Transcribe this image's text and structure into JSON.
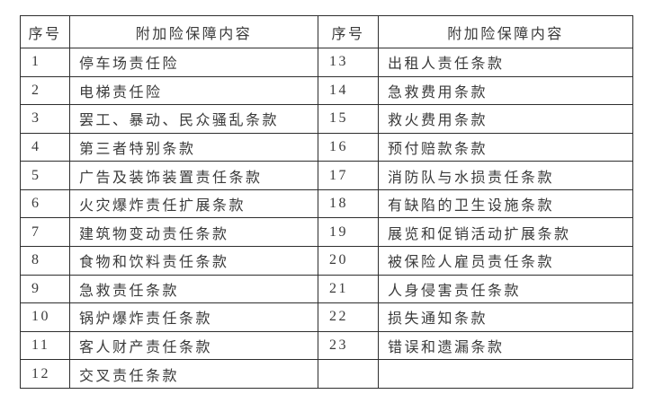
{
  "table": {
    "header": {
      "col_no": "序号",
      "col_content": "附加险保障内容"
    },
    "left_rows": [
      {
        "no": "1",
        "content": "停车场责任险"
      },
      {
        "no": "2",
        "content": "电梯责任险"
      },
      {
        "no": "3",
        "content": "罢工、暴动、民众骚乱条款"
      },
      {
        "no": "4",
        "content": "第三者特别条款"
      },
      {
        "no": "5",
        "content": "广告及装饰装置责任条款"
      },
      {
        "no": "6",
        "content": "火灾爆炸责任扩展条款"
      },
      {
        "no": "7",
        "content": "建筑物变动责任条款"
      },
      {
        "no": "8",
        "content": "食物和饮料责任条款"
      },
      {
        "no": "9",
        "content": "急救责任条款"
      },
      {
        "no": "10",
        "content": "锅炉爆炸责任条款"
      },
      {
        "no": "11",
        "content": "客人财产责任条款"
      },
      {
        "no": "12",
        "content": "交叉责任条款"
      }
    ],
    "right_rows": [
      {
        "no": "13",
        "content": "出租人责任条款"
      },
      {
        "no": "14",
        "content": "急救费用条款"
      },
      {
        "no": "15",
        "content": "救火费用条款"
      },
      {
        "no": "16",
        "content": "预付赔款条款"
      },
      {
        "no": "17",
        "content": "消防队与水损责任条款"
      },
      {
        "no": "18",
        "content": "有缺陷的卫生设施条款"
      },
      {
        "no": "19",
        "content": "展览和促销活动扩展条款"
      },
      {
        "no": "20",
        "content": "被保险人雇员责任条款"
      },
      {
        "no": "21",
        "content": "人身侵害责任条款"
      },
      {
        "no": "22",
        "content": "损失通知条款"
      },
      {
        "no": "23",
        "content": "错误和遗漏条款"
      },
      {
        "no": "",
        "content": ""
      }
    ],
    "colors": {
      "border": "#2e2e2e",
      "text": "#3a3a3a",
      "background": "#ffffff"
    }
  }
}
